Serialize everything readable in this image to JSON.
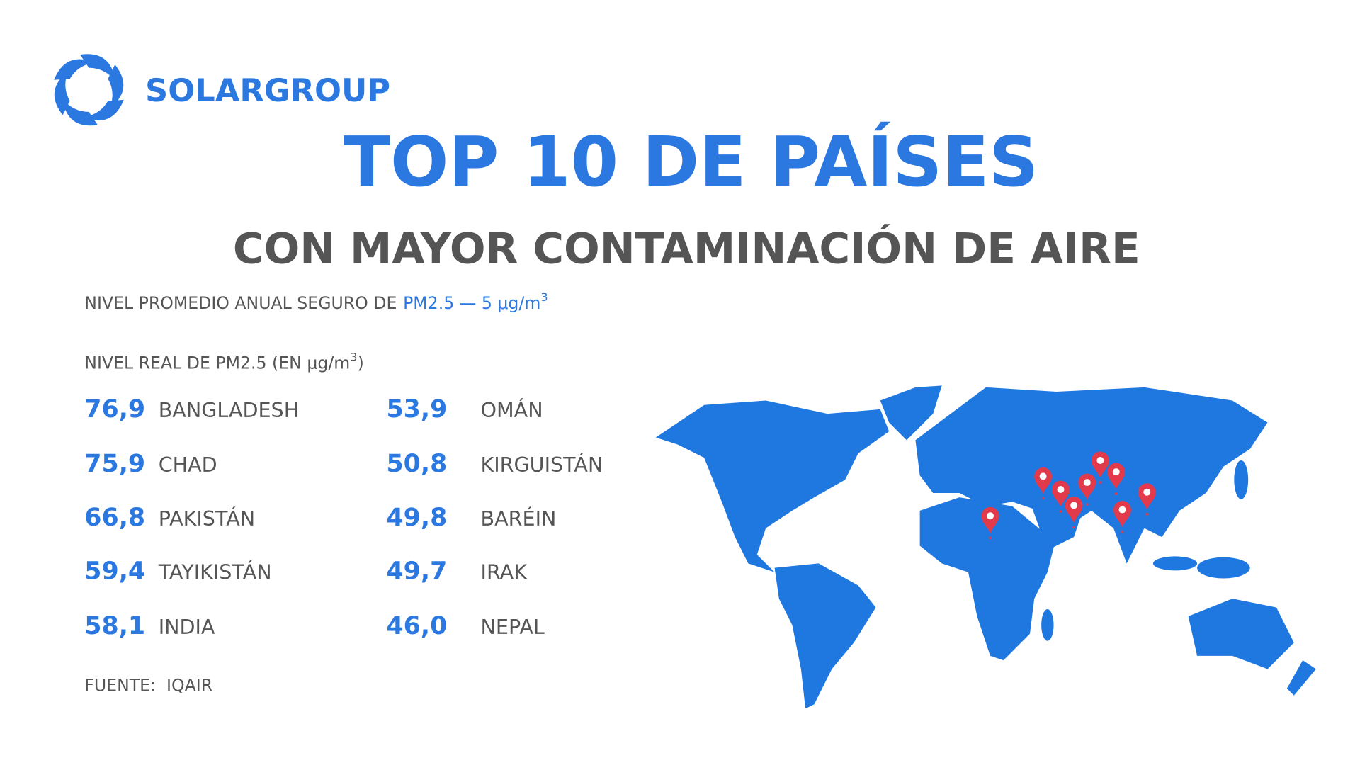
{
  "logo": {
    "text": "SOLARGROUP"
  },
  "header": {
    "title": "TOP 10 DE PAÍSES",
    "subtitle": "CON MAYOR CONTAMINACIÓN DE AIRE"
  },
  "safe_level": {
    "label": "NIVEL PROMEDIO ANUAL SEGURO DE",
    "value": "PM2.5 — 5 μg/m",
    "superscript": "3"
  },
  "real_level": {
    "label": "NIVEL REAL DE PM2.5 (EN μg/m",
    "superscript": "3",
    "suffix": ")"
  },
  "countries": [
    {
      "value": "76,9",
      "name": "BANGLADESH"
    },
    {
      "value": "75,9",
      "name": "CHAD"
    },
    {
      "value": "66,8",
      "name": "PAKISTÁN"
    },
    {
      "value": "59,4",
      "name": "TAYIKISTÁN"
    },
    {
      "value": "58,1",
      "name": "INDIA"
    },
    {
      "value": "53,9",
      "name": "OMÁN"
    },
    {
      "value": "50,8",
      "name": "KIRGUISTÁN"
    },
    {
      "value": "49,8",
      "name": "BARÉIN"
    },
    {
      "value": "49,7",
      "name": "IRAK"
    },
    {
      "value": "46,0",
      "name": "NEPAL"
    }
  ],
  "source": "FUENTE:  IQAIR"
}
